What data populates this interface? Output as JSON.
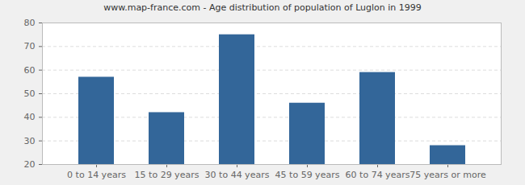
{
  "chart_data": {
    "type": "bar",
    "title": "www.map-france.com - Age distribution of population of Luglon in 1999",
    "categories": [
      "0 to 14 years",
      "15 to 29 years",
      "30 to 44 years",
      "45 to 59 years",
      "60 to 74 years",
      "75 years or more"
    ],
    "values": [
      57,
      42,
      75,
      46,
      59,
      28
    ],
    "color": "#336699",
    "ylim": [
      20,
      80
    ],
    "yticks": [
      20,
      30,
      40,
      50,
      60,
      70,
      80
    ],
    "grid": true
  }
}
